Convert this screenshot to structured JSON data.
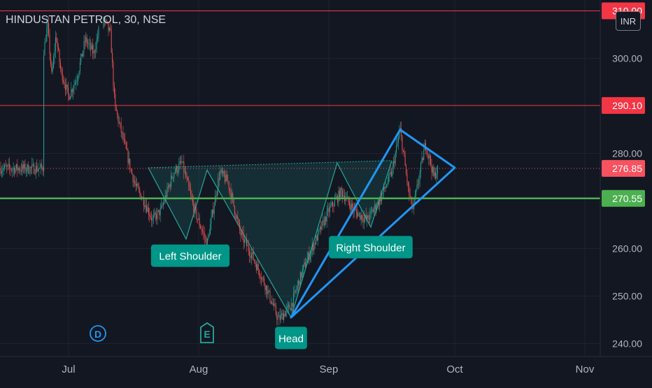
{
  "header": {
    "symbol": "HINDUSTAN PETROL",
    "interval": "30",
    "exchange": "NSE",
    "currency": "INR"
  },
  "chart_data": {
    "type": "candlestick",
    "y_ticks": [
      "300.00",
      "280.00",
      "260.00",
      "250.00",
      "240.00"
    ],
    "x_ticks": [
      "Jul",
      "Aug",
      "Sep",
      "Oct",
      "Nov"
    ],
    "price_lines": [
      {
        "price": 310.0,
        "label": "310.00",
        "color": "#f23645"
      },
      {
        "price": 290.1,
        "label": "290.10",
        "color": "#f23645"
      },
      {
        "price": 270.55,
        "label": "270.55",
        "color": "#4caf50"
      }
    ],
    "last_price": {
      "value": 276.85,
      "label": "276.85",
      "color": "#f7525f"
    },
    "ohlc_path": [
      [
        "Jun 25",
        301
      ],
      [
        "Jun 26",
        307
      ],
      [
        "Jun 27",
        296
      ],
      [
        "Jun 28",
        305
      ],
      [
        "Jun 29",
        298
      ],
      [
        "Jul 1",
        292
      ],
      [
        "Jul 3",
        296
      ],
      [
        "Jul 5",
        304
      ],
      [
        "Jul 7",
        301
      ],
      [
        "Jul 9",
        309
      ],
      [
        "Jul 11",
        305
      ],
      [
        "Jul 12",
        290
      ],
      [
        "Jul 14",
        283
      ],
      [
        "Jul 16",
        276
      ],
      [
        "Jul 17",
        273
      ],
      [
        "Jul 19",
        270
      ],
      [
        "Jul 21",
        266
      ],
      [
        "Jul 23",
        268
      ],
      [
        "Jul 26",
        276
      ],
      [
        "Jul 28",
        278
      ],
      [
        "Jul 31",
        268
      ],
      [
        "Aug 3",
        261
      ],
      [
        "Aug 6",
        276
      ],
      [
        "Aug 8",
        274
      ],
      [
        "Aug 11",
        263
      ],
      [
        "Aug 14",
        258
      ],
      [
        "Aug 17",
        252
      ],
      [
        "Aug 20",
        245
      ],
      [
        "Aug 23",
        248
      ],
      [
        "Aug 26",
        256
      ],
      [
        "Aug 29",
        262
      ],
      [
        "Sep 1",
        268
      ],
      [
        "Sep 4",
        272
      ],
      [
        "Sep 7",
        268
      ],
      [
        "Sep 10",
        266
      ],
      [
        "Sep 13",
        270
      ],
      [
        "Sep 16",
        276
      ],
      [
        "Sep 18",
        285
      ],
      [
        "Sep 20",
        272
      ],
      [
        "Sep 21",
        268
      ],
      [
        "Sep 24",
        282
      ],
      [
        "Sep 25",
        279
      ],
      [
        "Sep 26",
        275
      ],
      [
        "Sep 27",
        276.85
      ]
    ],
    "pattern": {
      "name": "head-and-shoulders",
      "points": [
        [
          "Jul 20",
          277
        ],
        [
          "Jul 29",
          262
        ],
        [
          "Aug 3",
          276.5
        ],
        [
          "Aug 23",
          245.5
        ],
        [
          "Sep 3",
          278
        ],
        [
          "Sep 11",
          264.5
        ],
        [
          "Sep 16",
          278.5
        ]
      ],
      "neckline": [
        [
          "Jul 20",
          277
        ],
        [
          "Sep 16",
          278.5
        ]
      ],
      "labels": [
        {
          "text": "Left Shoulder",
          "date": "Jul 30",
          "price": 258.5
        },
        {
          "text": "Head",
          "date": "Aug 23",
          "price": 241.2
        },
        {
          "text": "Right Shoulder",
          "date": "Sep 11",
          "price": 260.3
        }
      ]
    },
    "triangle": [
      [
        "Aug 23",
        245.5
      ],
      [
        "Sep 18",
        285
      ],
      [
        "Oct 1",
        277
      ]
    ],
    "events": [
      {
        "symbol": "D",
        "date": "Jul 8"
      },
      {
        "symbol": "E",
        "date": "Aug 3"
      }
    ]
  }
}
